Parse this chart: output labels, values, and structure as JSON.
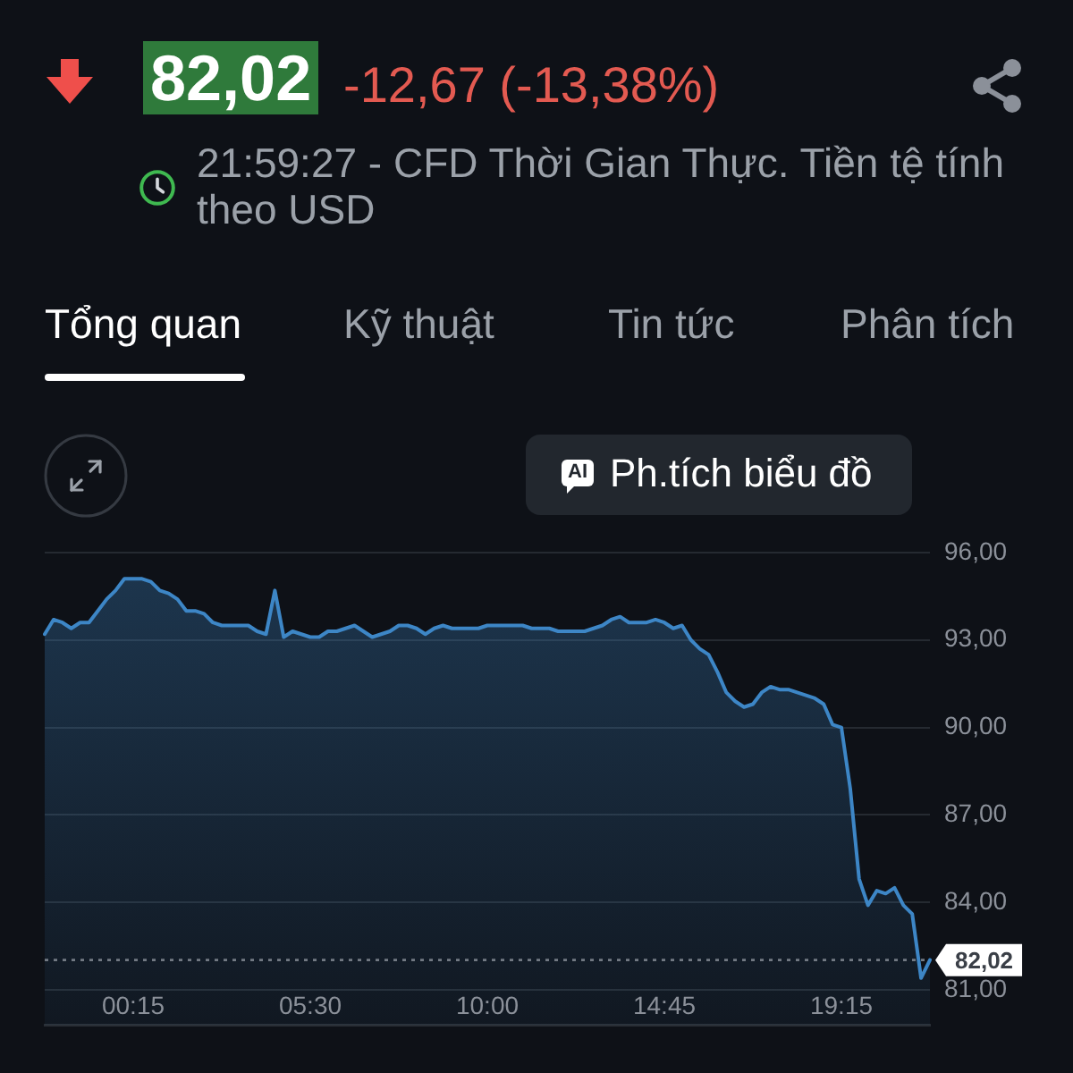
{
  "chart_data": {
    "type": "area",
    "title": "82,02",
    "subtitle": "-12,67 (-13,38%)",
    "annotations": [
      "21:59:27 - CFD Thời Gian Thực. Tiền tệ tính theo USD",
      "Tổng quan",
      "Kỹ thuật",
      "Tin tức",
      "Phân tích",
      "AI",
      "Ph.tích biểu đồ"
    ],
    "categories": [
      null,
      null,
      null,
      null,
      null,
      null,
      null,
      null,
      null,
      null,
      "00:15",
      null,
      null,
      null,
      null,
      null,
      null,
      null,
      null,
      null,
      null,
      null,
      null,
      null,
      null,
      null,
      null,
      null,
      null,
      null,
      "05:30",
      null,
      null,
      null,
      null,
      null,
      null,
      null,
      null,
      null,
      null,
      null,
      null,
      null,
      null,
      null,
      null,
      null,
      null,
      null,
      "10:00",
      null,
      null,
      null,
      null,
      null,
      null,
      null,
      null,
      null,
      null,
      null,
      null,
      null,
      null,
      null,
      null,
      null,
      null,
      null,
      "14:45",
      null,
      null,
      null,
      null,
      null,
      null,
      null,
      null,
      null,
      null,
      null,
      null,
      null,
      null,
      null,
      null,
      null,
      null,
      null,
      "19:15",
      null,
      null,
      null,
      null,
      null,
      null,
      null,
      null,
      null,
      null
    ],
    "values": [
      93.2,
      93.7,
      93.6,
      93.4,
      93.6,
      93.6,
      94.0,
      94.4,
      94.7,
      95.1,
      95.1,
      95.1,
      95.0,
      94.7,
      94.6,
      94.4,
      94.0,
      94.0,
      93.9,
      93.6,
      93.5,
      93.5,
      93.5,
      93.5,
      93.3,
      93.2,
      94.7,
      93.1,
      93.3,
      93.2,
      93.1,
      93.1,
      93.3,
      93.3,
      93.4,
      93.5,
      93.3,
      93.1,
      93.2,
      93.3,
      93.5,
      93.5,
      93.4,
      93.2,
      93.4,
      93.5,
      93.4,
      93.4,
      93.4,
      93.4,
      93.5,
      93.5,
      93.5,
      93.5,
      93.5,
      93.4,
      93.4,
      93.4,
      93.3,
      93.3,
      93.3,
      93.3,
      93.4,
      93.5,
      93.7,
      93.8,
      93.6,
      93.6,
      93.6,
      93.7,
      93.6,
      93.4,
      93.5,
      93.0,
      92.7,
      92.5,
      91.9,
      91.2,
      90.9,
      90.7,
      90.8,
      91.2,
      91.4,
      91.3,
      91.3,
      91.2,
      91.1,
      91.0,
      90.8,
      90.1,
      90.0,
      87.9,
      84.8,
      83.9,
      84.4,
      84.3,
      84.5,
      83.9,
      83.6,
      81.4,
      82.02
    ],
    "color": "#3d86c6",
    "ylim": [
      79.8,
      96
    ],
    "yticks": [
      {
        "value": 81,
        "label": "81,00"
      },
      {
        "value": 84,
        "label": "84,00"
      },
      {
        "value": 87,
        "label": "87,00"
      },
      {
        "value": 90,
        "label": "90,00"
      },
      {
        "value": 93,
        "label": "93,00"
      },
      {
        "value": 96,
        "label": "96,00"
      }
    ],
    "grid": "y",
    "legend": false,
    "marker": "none",
    "ref_lines": [
      {
        "axis": "y",
        "value": 82.02,
        "label": "82,02",
        "color": "#737a84",
        "line_style": "dotted"
      }
    ]
  }
}
